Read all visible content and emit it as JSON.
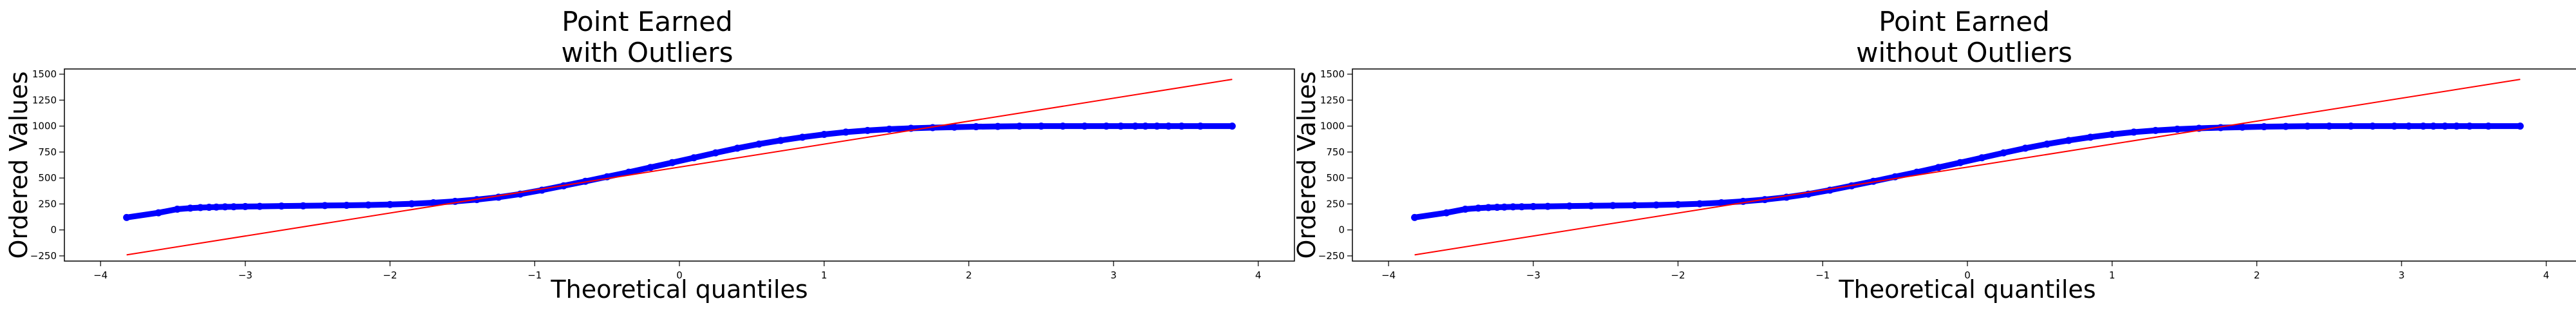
{
  "chart_data": [
    {
      "type": "scatter",
      "title_lines": [
        "Point Earned",
        "with Outliers"
      ],
      "xlabel": "Theoretical quantiles",
      "ylabel": "Ordered Values",
      "xlim": [
        -4.25,
        4.25
      ],
      "ylim": [
        -300,
        1550
      ],
      "xticks": [
        -4,
        -3,
        -2,
        -1,
        0,
        1,
        2,
        3,
        4
      ],
      "yticks": [
        -250,
        0,
        250,
        500,
        750,
        1000,
        1250,
        1500
      ],
      "grid": false,
      "fit_line": {
        "x": [
          -3.82,
          3.82
        ],
        "y": [
          -240,
          1450
        ],
        "color": "#ff0000"
      },
      "point_color": "#0000ff",
      "series": [
        {
          "x": [
            -3.82,
            -3.6,
            -3.47,
            -3.38,
            -3.31,
            -3.25,
            -3.2,
            -3.14,
            -3.08,
            -3.0,
            -2.9,
            -2.75,
            -2.6,
            -2.45,
            -2.3,
            -2.15,
            -2.0,
            -1.85,
            -1.7,
            -1.55,
            -1.4,
            -1.25,
            -1.1,
            -0.95,
            -0.8,
            -0.65,
            -0.5,
            -0.35,
            -0.2,
            -0.05,
            0.1,
            0.25,
            0.4,
            0.55,
            0.7,
            0.85,
            1.0,
            1.15,
            1.3,
            1.45,
            1.6,
            1.75,
            1.9,
            2.05,
            2.2,
            2.35,
            2.5,
            2.65,
            2.8,
            2.95,
            3.05,
            3.15,
            3.22,
            3.3,
            3.38,
            3.47,
            3.6,
            3.82
          ],
          "y": [
            120,
            165,
            200,
            210,
            215,
            218,
            220,
            222,
            223,
            225,
            227,
            230,
            232,
            235,
            237,
            240,
            245,
            252,
            262,
            275,
            292,
            315,
            345,
            383,
            425,
            468,
            512,
            556,
            602,
            648,
            695,
            742,
            787,
            827,
            862,
            893,
            920,
            942,
            958,
            970,
            979,
            985,
            990,
            994,
            997,
            999,
            1000,
            1000,
            1000,
            1000,
            1000,
            1000,
            1000,
            1000,
            1000,
            1000,
            1000,
            1000
          ]
        }
      ]
    },
    {
      "type": "scatter",
      "title_lines": [
        "Point Earned",
        "without Outliers"
      ],
      "xlabel": "Theoretical quantiles",
      "ylabel": "Ordered Values",
      "xlim": [
        -4.25,
        4.25
      ],
      "ylim": [
        -300,
        1550
      ],
      "xticks": [
        -4,
        -3,
        -2,
        -1,
        0,
        1,
        2,
        3,
        4
      ],
      "yticks": [
        -250,
        0,
        250,
        500,
        750,
        1000,
        1250,
        1500
      ],
      "grid": false,
      "fit_line": {
        "x": [
          -3.82,
          3.82
        ],
        "y": [
          -240,
          1450
        ],
        "color": "#ff0000"
      },
      "point_color": "#0000ff",
      "series": [
        {
          "x": [
            -3.82,
            -3.6,
            -3.47,
            -3.38,
            -3.31,
            -3.25,
            -3.2,
            -3.14,
            -3.08,
            -3.0,
            -2.9,
            -2.75,
            -2.6,
            -2.45,
            -2.3,
            -2.15,
            -2.0,
            -1.85,
            -1.7,
            -1.55,
            -1.4,
            -1.25,
            -1.1,
            -0.95,
            -0.8,
            -0.65,
            -0.5,
            -0.35,
            -0.2,
            -0.05,
            0.1,
            0.25,
            0.4,
            0.55,
            0.7,
            0.85,
            1.0,
            1.15,
            1.3,
            1.45,
            1.6,
            1.75,
            1.9,
            2.05,
            2.2,
            2.35,
            2.5,
            2.65,
            2.8,
            2.95,
            3.05,
            3.15,
            3.22,
            3.3,
            3.38,
            3.47,
            3.6,
            3.82
          ],
          "y": [
            120,
            165,
            200,
            210,
            215,
            218,
            220,
            222,
            223,
            225,
            227,
            230,
            232,
            235,
            237,
            240,
            245,
            252,
            262,
            275,
            292,
            315,
            345,
            383,
            425,
            468,
            512,
            556,
            602,
            648,
            695,
            742,
            787,
            827,
            862,
            893,
            920,
            942,
            958,
            970,
            979,
            985,
            990,
            994,
            997,
            999,
            1000,
            1000,
            1000,
            1000,
            1000,
            1000,
            1000,
            1000,
            1000,
            1000,
            1000,
            1000
          ]
        }
      ]
    }
  ]
}
